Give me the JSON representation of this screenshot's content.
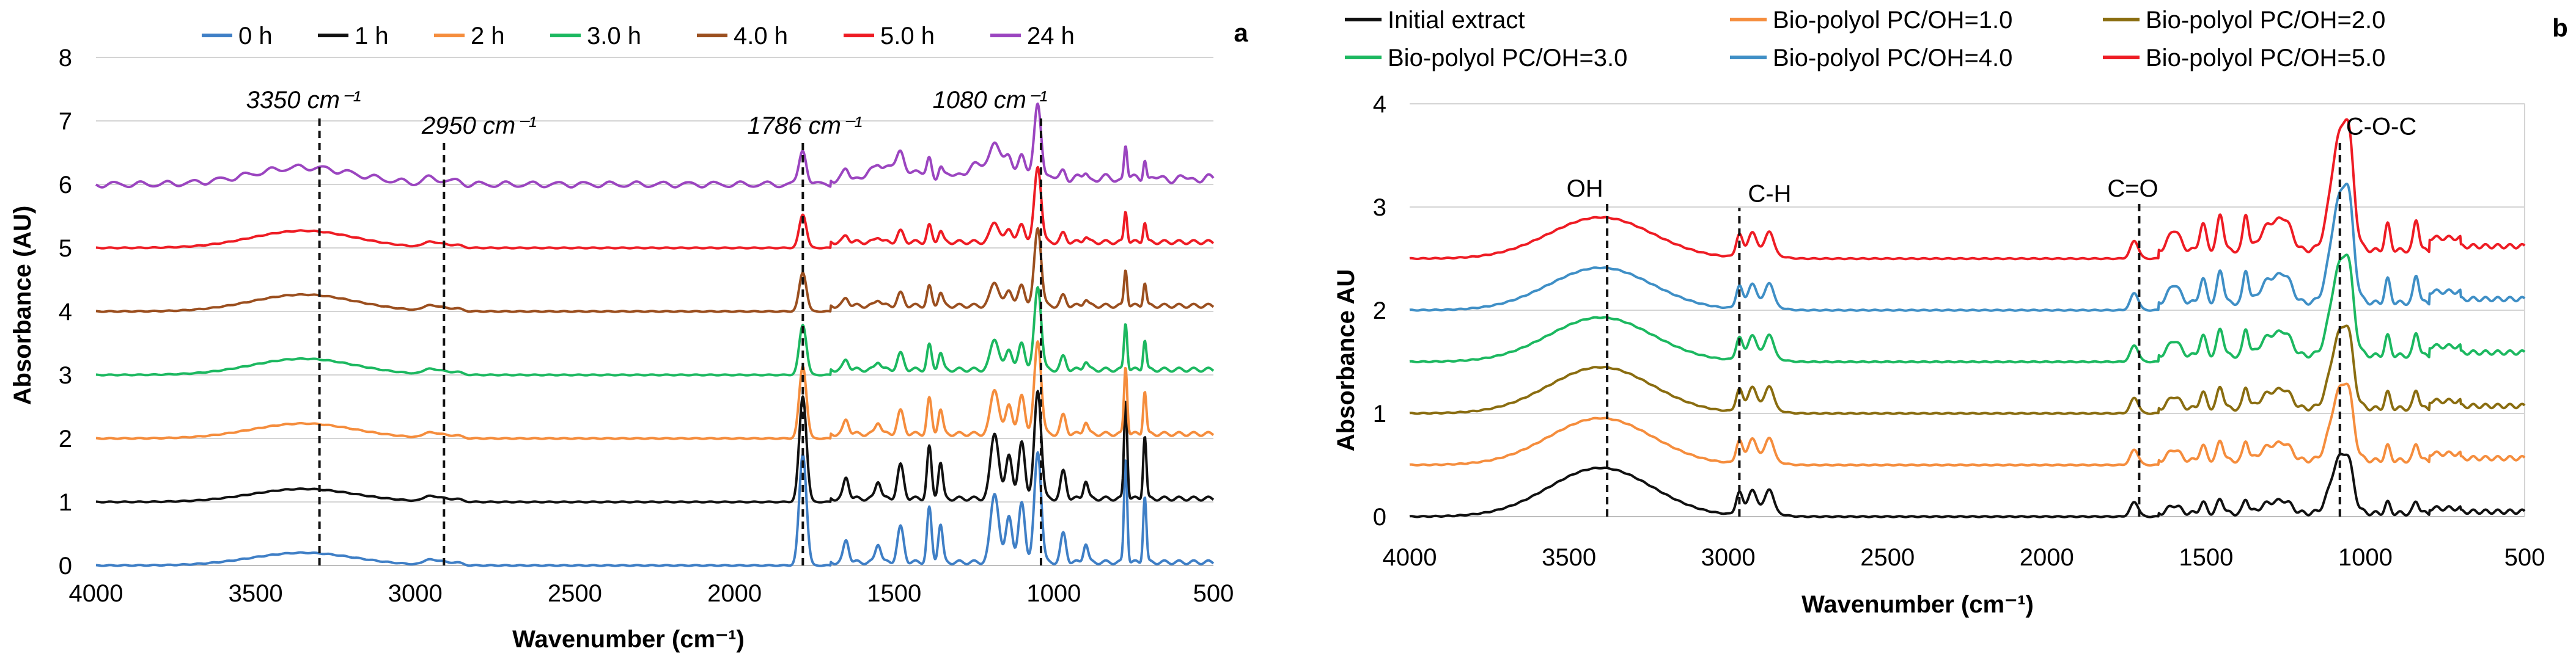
{
  "chart_data": [
    {
      "type": "line",
      "panel_label": "a",
      "xlabel": "Wavenumber (cm⁻¹)",
      "ylabel": "Absorbance (AU)",
      "xlim": [
        4000,
        500
      ],
      "ylim": [
        0,
        8
      ],
      "x_ticks": [
        "4000",
        "3500",
        "3000",
        "2500",
        "2000",
        "1500",
        "1000",
        "500"
      ],
      "y_ticks": [
        "0",
        "1",
        "2",
        "3",
        "4",
        "5",
        "6",
        "7",
        "8"
      ],
      "grid": "horizontal",
      "legend_position": "top",
      "series": [
        {
          "name": "0 h",
          "color": "#3f7fc6",
          "offset": 0,
          "intensity": 1.0
        },
        {
          "name": "1 h",
          "color": "#111111",
          "offset": 1,
          "intensity": 0.95
        },
        {
          "name": "2 h",
          "color": "#f58d3d",
          "offset": 2,
          "intensity": 0.65
        },
        {
          "name": "3.0 h",
          "color": "#1cb860",
          "offset": 3,
          "intensity": 0.45
        },
        {
          "name": "4.0 h",
          "color": "#9b4f1f",
          "offset": 4,
          "intensity": 0.35
        },
        {
          "name": "5.0 h",
          "color": "#ee1c24",
          "offset": 5,
          "intensity": 0.3
        },
        {
          "name": "24 h",
          "color": "#9b45c0",
          "offset": 6,
          "intensity": 0.32
        }
      ],
      "annotations": [
        {
          "label": "3350 cm⁻¹",
          "x": 3350,
          "line_x": 3300,
          "text_y": 7.2
        },
        {
          "label": "2950 cm⁻¹",
          "x": 2800,
          "line_x": 2910,
          "text_y": 6.8
        },
        {
          "label": "1786 cm⁻¹",
          "x": 1780,
          "line_x": 1786,
          "text_y": 6.8
        },
        {
          "label": "1080 cm⁻¹",
          "x": 1200,
          "line_x": 1040,
          "text_y": 7.2
        }
      ]
    },
    {
      "type": "line",
      "panel_label": "b",
      "xlabel": "Wavenumber (cm⁻¹)",
      "ylabel": "Absorbance AU",
      "xlim": [
        4000,
        500
      ],
      "ylim": [
        0,
        4
      ],
      "x_ticks": [
        "4000",
        "3500",
        "3000",
        "2500",
        "2000",
        "1500",
        "1000",
        "500"
      ],
      "y_ticks": [
        "0",
        "1",
        "2",
        "3",
        "4"
      ],
      "grid": "horizontal",
      "legend_position": "top",
      "series": [
        {
          "name": "Initial extract",
          "color": "#111111",
          "offset": 0,
          "intensity": 0.4
        },
        {
          "name": "Bio-polyol PC/OH=1.0",
          "color": "#f58d3d",
          "offset": 0.5,
          "intensity": 0.55
        },
        {
          "name": "Bio-polyol PC/OH=2.0",
          "color": "#8a6d10",
          "offset": 1.0,
          "intensity": 0.6
        },
        {
          "name": "Bio-polyol PC/OH=3.0",
          "color": "#1cb860",
          "offset": 1.5,
          "intensity": 0.75
        },
        {
          "name": "Bio-polyol PC/OH=4.0",
          "color": "#3f8fc6",
          "offset": 2.0,
          "intensity": 0.9
        },
        {
          "name": "Bio-polyol PC/OH=5.0",
          "color": "#ee1c24",
          "offset": 2.5,
          "intensity": 1.0
        }
      ],
      "annotations": [
        {
          "label": "OH",
          "x": 3450,
          "line_x": 3380,
          "text_y": 3.1
        },
        {
          "label": "C-H",
          "x": 2870,
          "line_x": 2965,
          "text_y": 3.05
        },
        {
          "label": "C=O",
          "x": 1730,
          "line_x": 1710,
          "text_y": 3.1
        },
        {
          "label": "C-O-C",
          "x": 950,
          "line_x": 1080,
          "text_y": 3.7
        }
      ]
    }
  ]
}
